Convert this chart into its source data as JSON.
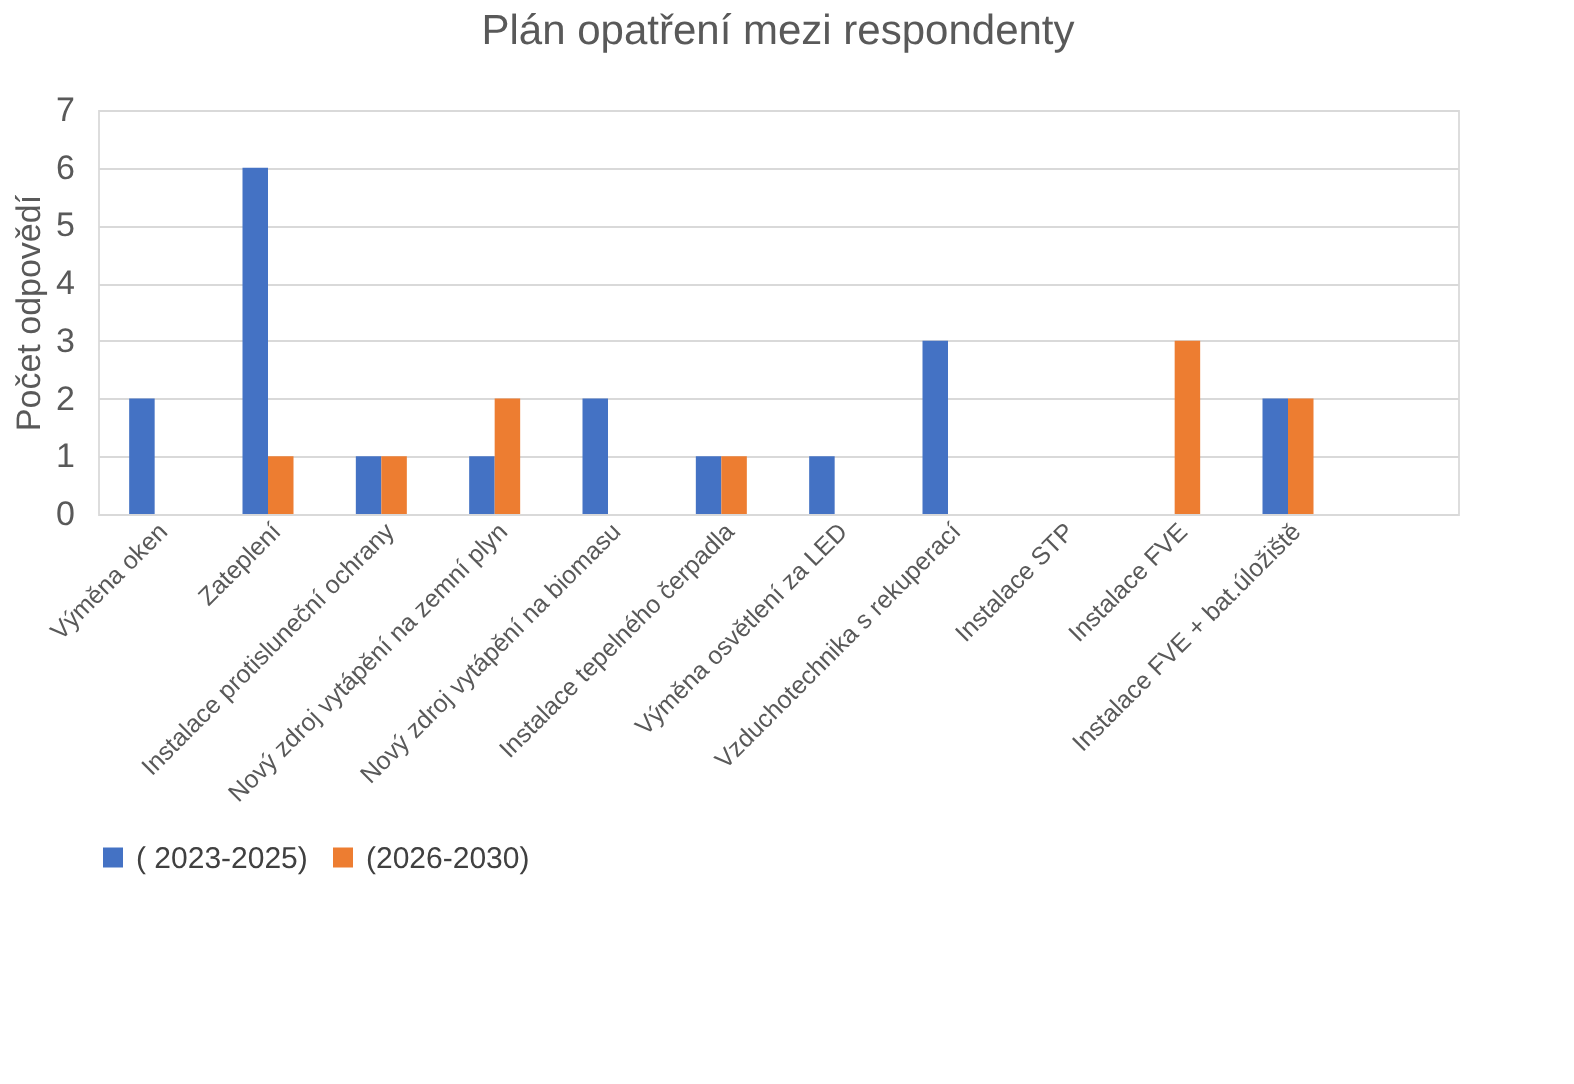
{
  "chart_data": {
    "type": "bar",
    "title": "Plán opatření mezi respondenty",
    "ylabel": "Počet odpovědí",
    "categories": [
      "Výměna oken",
      "Zateplení",
      "Instalace protisluneční ochrany",
      "Nový zdroj vytápění na zemní plyn",
      "Nový zdroj vytápění na biomasu",
      "Instalace tepelného čerpadla",
      "Výměna osvětlení za LED",
      "Vzduchotechnika s rekuperací",
      "Instalace STP",
      "Instalace FVE",
      "Instalace FVE + bat.úložiště",
      null
    ],
    "series": [
      {
        "name": "( 2023-2025)",
        "color": "#4472c4",
        "values": [
          2,
          6,
          1,
          1,
          2,
          1,
          1,
          3,
          null,
          null,
          2,
          null
        ]
      },
      {
        "name": "(2026-2030)",
        "color": "#ed7d31",
        "values": [
          null,
          1,
          1,
          2,
          null,
          1,
          null,
          null,
          null,
          3,
          2,
          null
        ]
      }
    ],
    "ylim": [
      0,
      7
    ],
    "yticks": [
      0,
      1,
      2,
      3,
      4,
      5,
      6,
      7
    ],
    "grid": "y",
    "legend": "bottom"
  }
}
